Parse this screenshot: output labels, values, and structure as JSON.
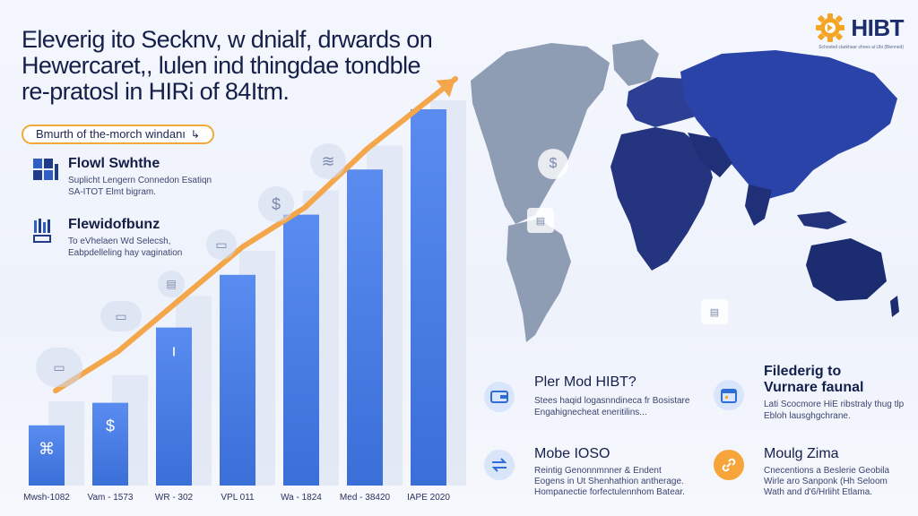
{
  "headline": {
    "line1": "Eleverig ito Secknv, w dnialf, drwards on",
    "line2": "Hewercaret,, lulen ind thingdae tondble",
    "line3": "re-pratosl in HIRi of 84Itm."
  },
  "brand": {
    "name": "HIBT",
    "tagline": "Schooled clarkhaar shnes ai Ubi (Blenned)",
    "accent": "#f5a524",
    "color": "#1c2d6d"
  },
  "pill": {
    "label": "Bmurth of the-morch windanı",
    "arrow": "↳",
    "border": "#f2a83a"
  },
  "side_items": [
    {
      "title": "Flowl Swhthe",
      "line1": "Suplicht Lengern Connedon Esatiqn",
      "line2": "SA-ITOT Elmt bigram.",
      "icon": "bar-grid-icon"
    },
    {
      "title": "Flewidofbunz",
      "line1": "To eVhelaen Wd Selecsh,",
      "line2": "Eabpdelleling hay vagination",
      "icon": "chart-grid-icon"
    }
  ],
  "chart_data": {
    "type": "bar",
    "categories": [
      "Mwsh-1082",
      "Vam - 1573",
      "WR - 302",
      "VPL 011",
      "Wa - 1824",
      "Med - 38420",
      "IAPE 2020"
    ],
    "values": [
      16,
      22,
      42,
      56,
      72,
      84,
      100
    ],
    "ghost_values": [
      20,
      27,
      48,
      60,
      76,
      88,
      100
    ],
    "bar_labels": [
      "⌘",
      "$",
      "ı",
      "",
      "",
      "",
      ""
    ],
    "trend": [
      {
        "x": 0,
        "y": 18
      },
      {
        "x": 1,
        "y": 30
      },
      {
        "x": 2,
        "y": 46
      },
      {
        "x": 3,
        "y": 62
      },
      {
        "x": 4,
        "y": 74
      },
      {
        "x": 5,
        "y": 92
      },
      {
        "x": 6,
        "y": 124
      }
    ],
    "ylim": [
      0,
      130
    ],
    "bar_color": "#3a6fd8",
    "trend_color": "#f4a64a",
    "grid": false
  },
  "cards": [
    {
      "title": "Pler Mod HIBT?",
      "line1": "Stees haqid logasnndineca fr Bosistare",
      "line2": "Engahignecheat eneritilins...",
      "icon": "wallet-icon",
      "accent": "#2f6dd6"
    },
    {
      "title": "Filederig to Vurnare faunal",
      "line1": "Lati Scocmore HiE ribstraly thug tlp",
      "line2": "Ebloh lausghgchrane.",
      "icon": "calendar-icon",
      "accent": "#2f6dd6"
    },
    {
      "title": "Mobe IOSO",
      "line1": "Reintig Genonnmnner & Endent",
      "line2": "Eogens in Ut Shenhathion antherage.",
      "line3": "Hompanectie forfectulennhom Batear.",
      "icon": "swap-icon",
      "accent": "#2f6dd6"
    },
    {
      "title": "Moulg Zima",
      "line1": "Cnecentions a Beslerie Geobila",
      "line2": "Wirle aro Sanponk (Hh Seloom",
      "line3": "Wath and d'6/Hrliht Etlama.",
      "icon": "link-icon",
      "accent": "#f5a524"
    }
  ]
}
